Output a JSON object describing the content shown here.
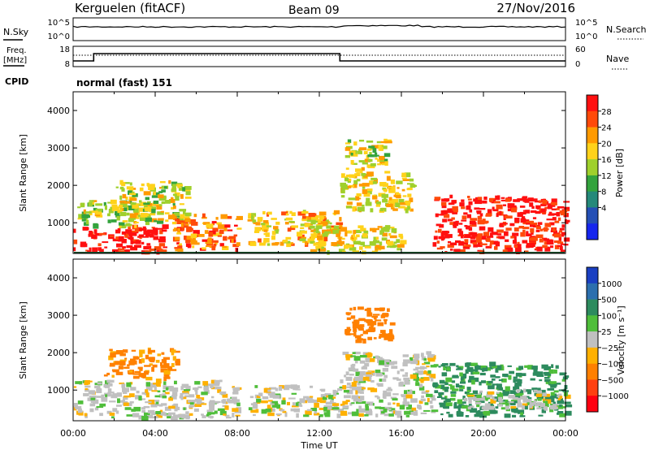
{
  "header": {
    "station": "Kerguelen (fitACF)",
    "beam": "Beam 09",
    "date": "27/Nov/2016"
  },
  "strip_panels": {
    "nsky_label": "N.Sky",
    "nsky_ticks": [
      "10^5",
      "10^0"
    ],
    "nsearch_label": "N.Search",
    "nsearch_ticks": [
      "10^5",
      "10^0"
    ],
    "freq_label": "Freq.",
    "freq_unit": "[MHz]",
    "freq_ticks": [
      "18",
      "8"
    ],
    "nave_label": "Nave",
    "nave_ticks": [
      "60",
      "0"
    ],
    "cpid_label": "CPID",
    "cpid_value": "normal (fast) 151"
  },
  "chart_data": [
    {
      "type": "heatmap",
      "panel": "power",
      "ylabel": "Slant Range [km]",
      "ylim": [
        180,
        4500
      ],
      "y_ticks": [
        "4000",
        "3000",
        "2000",
        "1000"
      ],
      "colorbar_label": "Power [dB]",
      "colorbar_ticks": [
        "28",
        "24",
        "20",
        "16",
        "12",
        "8",
        "4"
      ],
      "colors": [
        "#ff1010",
        "#ff4a0a",
        "#ff9a00",
        "#ffd21a",
        "#9fd02c",
        "#33a33d",
        "#25897a",
        "#244fb5",
        "#1626ee"
      ],
      "regions": [
        {
          "t": [
            0.0,
            4.4
          ],
          "r": [
            200,
            900
          ],
          "level": 28
        },
        {
          "t": [
            0.2,
            4.0
          ],
          "r": [
            900,
            1600
          ],
          "level": 14
        },
        {
          "t": [
            2.0,
            5.5
          ],
          "r": [
            1000,
            2100
          ],
          "level": 14
        },
        {
          "t": [
            4.8,
            8.0
          ],
          "r": [
            250,
            1200
          ],
          "level": 22
        },
        {
          "t": [
            8.5,
            13.0
          ],
          "r": [
            400,
            1300
          ],
          "level": 18
        },
        {
          "t": [
            11.5,
            16.0
          ],
          "r": [
            200,
            900
          ],
          "level": 16
        },
        {
          "t": [
            13.0,
            16.5
          ],
          "r": [
            1300,
            2300
          ],
          "level": 16
        },
        {
          "t": [
            13.2,
            15.2
          ],
          "r": [
            2200,
            3200
          ],
          "level": 14
        },
        {
          "t": [
            17.5,
            24.0
          ],
          "r": [
            200,
            1700
          ],
          "level": 28
        }
      ]
    },
    {
      "type": "heatmap",
      "panel": "velocity",
      "ylabel": "Slant Range [km]",
      "ylim": [
        180,
        4500
      ],
      "y_ticks": [
        "4000",
        "3000",
        "2000",
        "1000"
      ],
      "colorbar_label": "Velocity [m s⁻¹]",
      "colorbar_ticks": [
        "1000",
        "500",
        "100",
        "25",
        "−25",
        "−100",
        "−500",
        "−1000"
      ],
      "colors": [
        "#1a3fc2",
        "#2c6fae",
        "#2d8b5e",
        "#4fbe3a",
        "#c0c0c0",
        "#ffb000",
        "#ff8000",
        "#ff4010",
        "#ff0010"
      ],
      "regions": [
        {
          "t": [
            0.0,
            8.0
          ],
          "r": [
            250,
            1250
          ],
          "level": 0
        },
        {
          "t": [
            1.5,
            5.0
          ],
          "r": [
            1300,
            2100
          ],
          "level": -120
        },
        {
          "t": [
            8.5,
            13.0
          ],
          "r": [
            300,
            1100
          ],
          "level": 0
        },
        {
          "t": [
            13.0,
            17.5
          ],
          "r": [
            300,
            2000
          ],
          "level": 0
        },
        {
          "t": [
            13.2,
            15.5
          ],
          "r": [
            2300,
            3200
          ],
          "level": -150
        },
        {
          "t": [
            17.5,
            24.0
          ],
          "r": [
            300,
            1700
          ],
          "level": 120
        },
        {
          "t": [
            19.0,
            24.0
          ],
          "r": [
            500,
            1000
          ],
          "level": 0
        }
      ]
    }
  ],
  "x_axis": {
    "ticks": [
      "00:00",
      "04:00",
      "08:00",
      "12:00",
      "16:00",
      "20:00",
      "00:00"
    ],
    "label": "Time UT"
  }
}
